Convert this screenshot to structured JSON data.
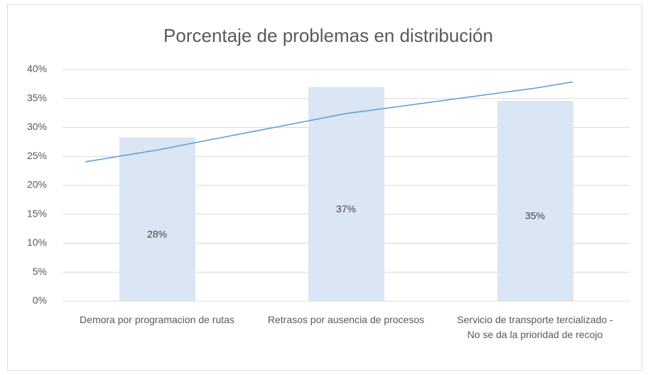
{
  "chart_data": {
    "type": "bar",
    "title": "Porcentaje de problemas en distribución",
    "categories": [
      "Demora por programacion de rutas",
      "Retrasos por ausencia de procesos",
      "Servicio de transporte tercializado - No se da la prioridad de recojo"
    ],
    "values": [
      28.3,
      37,
      34.6
    ],
    "value_labels": [
      "28%",
      "37%",
      "35%"
    ],
    "color": "#dae6f4",
    "trendline": {
      "type": "line",
      "color": "#5b9bd5",
      "values": [
        26.1,
        32.4,
        36.8
      ]
    },
    "ylim": [
      0,
      40
    ],
    "yticks": [
      {
        "value": 0,
        "label": "0%"
      },
      {
        "value": 5,
        "label": "5%"
      },
      {
        "value": 10,
        "label": "10%"
      },
      {
        "value": 15,
        "label": "15%"
      },
      {
        "value": 20,
        "label": "20%"
      },
      {
        "value": 25,
        "label": "25%"
      },
      {
        "value": 30,
        "label": "30%"
      },
      {
        "value": 35,
        "label": "35%"
      },
      {
        "value": 40,
        "label": "40%"
      }
    ],
    "grid": true
  }
}
